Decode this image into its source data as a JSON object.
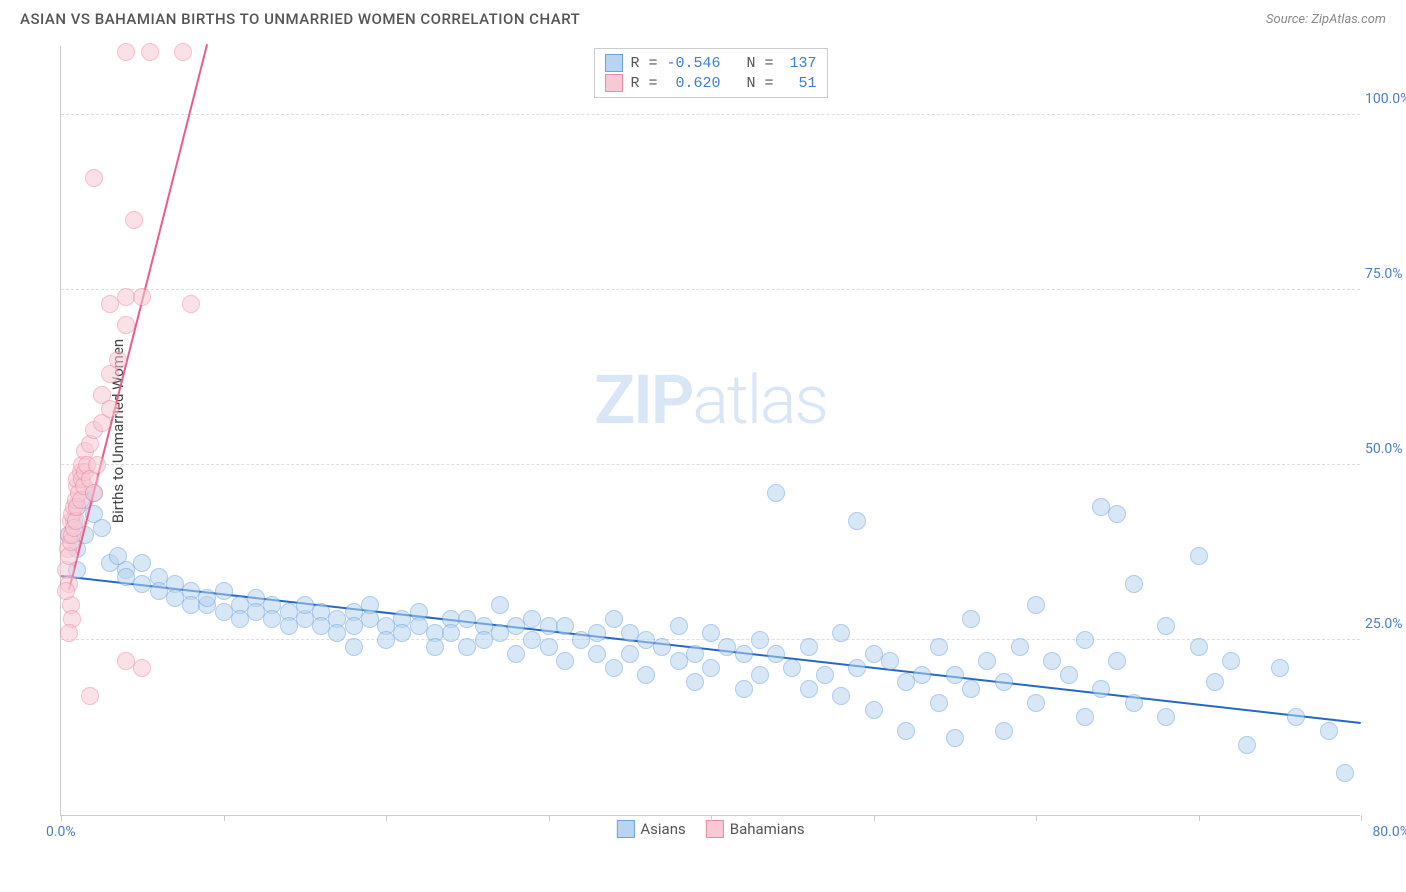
{
  "title": "ASIAN VS BAHAMIAN BIRTHS TO UNMARRIED WOMEN CORRELATION CHART",
  "source": "Source: ZipAtlas.com",
  "watermark_bold": "ZIP",
  "watermark_light": "atlas",
  "chart": {
    "type": "scatter",
    "yaxis_title": "Births to Unmarried Women",
    "background_color": "#ffffff",
    "grid_color": "#dddddd",
    "axis_color": "#cccccc",
    "tick_label_color": "#4a7ec9",
    "xlim": [
      0,
      80
    ],
    "ylim": [
      0,
      110
    ],
    "xtick_positions": [
      0,
      10,
      20,
      30,
      40,
      50,
      60,
      70,
      80
    ],
    "ytick_labels": [
      {
        "y": 25,
        "label": "25.0%"
      },
      {
        "y": 50,
        "label": "50.0%"
      },
      {
        "y": 75,
        "label": "75.0%"
      },
      {
        "y": 100,
        "label": "100.0%"
      }
    ],
    "xlabel_min": "0.0%",
    "xlabel_max": "80.0%",
    "marker_radius": 9,
    "marker_opacity": 0.55,
    "series": [
      {
        "name": "Asians",
        "color_fill": "#b8d4f0",
        "color_stroke": "#6ba3e0",
        "trend_line_color": "#2468c4",
        "trend": {
          "x1": 0,
          "y1": 34,
          "x2": 80,
          "y2": 13
        },
        "stats": {
          "R": "-0.546",
          "N": "137"
        },
        "points": [
          [
            1,
            44
          ],
          [
            1.5,
            45
          ],
          [
            0.8,
            42
          ],
          [
            0.5,
            40
          ],
          [
            2,
            46
          ],
          [
            2,
            43
          ],
          [
            2.5,
            41
          ],
          [
            1,
            38
          ],
          [
            1.5,
            40
          ],
          [
            1,
            35
          ],
          [
            3,
            36
          ],
          [
            4,
            35
          ],
          [
            3.5,
            37
          ],
          [
            5,
            36
          ],
          [
            4,
            34
          ],
          [
            5,
            33
          ],
          [
            6,
            34
          ],
          [
            6,
            32
          ],
          [
            7,
            33
          ],
          [
            7,
            31
          ],
          [
            8,
            32
          ],
          [
            8,
            30
          ],
          [
            9,
            30
          ],
          [
            9,
            31
          ],
          [
            10,
            32
          ],
          [
            10,
            29
          ],
          [
            11,
            30
          ],
          [
            11,
            28
          ],
          [
            12,
            31
          ],
          [
            12,
            29
          ],
          [
            13,
            30
          ],
          [
            13,
            28
          ],
          [
            14,
            29
          ],
          [
            14,
            27
          ],
          [
            15,
            28
          ],
          [
            15,
            30
          ],
          [
            16,
            29
          ],
          [
            16,
            27
          ],
          [
            17,
            28
          ],
          [
            17,
            26
          ],
          [
            18,
            29
          ],
          [
            18,
            27
          ],
          [
            18,
            24
          ],
          [
            19,
            28
          ],
          [
            19,
            30
          ],
          [
            20,
            27
          ],
          [
            20,
            25
          ],
          [
            21,
            28
          ],
          [
            21,
            26
          ],
          [
            22,
            29
          ],
          [
            22,
            27
          ],
          [
            23,
            26
          ],
          [
            23,
            24
          ],
          [
            24,
            28
          ],
          [
            24,
            26
          ],
          [
            25,
            28
          ],
          [
            25,
            24
          ],
          [
            26,
            27
          ],
          [
            26,
            25
          ],
          [
            27,
            26
          ],
          [
            27,
            30
          ],
          [
            28,
            27
          ],
          [
            28,
            23
          ],
          [
            29,
            25
          ],
          [
            29,
            28
          ],
          [
            30,
            27
          ],
          [
            30,
            24
          ],
          [
            31,
            27
          ],
          [
            31,
            22
          ],
          [
            32,
            25
          ],
          [
            33,
            26
          ],
          [
            33,
            23
          ],
          [
            34,
            28
          ],
          [
            34,
            21
          ],
          [
            35,
            26
          ],
          [
            35,
            23
          ],
          [
            36,
            25
          ],
          [
            36,
            20
          ],
          [
            37,
            24
          ],
          [
            38,
            27
          ],
          [
            38,
            22
          ],
          [
            39,
            23
          ],
          [
            39,
            19
          ],
          [
            40,
            26
          ],
          [
            40,
            21
          ],
          [
            41,
            24
          ],
          [
            42,
            23
          ],
          [
            42,
            18
          ],
          [
            43,
            25
          ],
          [
            43,
            20
          ],
          [
            44,
            46
          ],
          [
            44,
            23
          ],
          [
            45,
            21
          ],
          [
            46,
            24
          ],
          [
            46,
            18
          ],
          [
            47,
            20
          ],
          [
            48,
            26
          ],
          [
            48,
            17
          ],
          [
            49,
            42
          ],
          [
            49,
            21
          ],
          [
            50,
            23
          ],
          [
            50,
            15
          ],
          [
            51,
            22
          ],
          [
            52,
            19
          ],
          [
            52,
            12
          ],
          [
            53,
            20
          ],
          [
            54,
            24
          ],
          [
            54,
            16
          ],
          [
            55,
            20
          ],
          [
            55,
            11
          ],
          [
            56,
            28
          ],
          [
            56,
            18
          ],
          [
            57,
            22
          ],
          [
            58,
            19
          ],
          [
            58,
            12
          ],
          [
            59,
            24
          ],
          [
            60,
            30
          ],
          [
            60,
            16
          ],
          [
            61,
            22
          ],
          [
            62,
            20
          ],
          [
            63,
            25
          ],
          [
            63,
            14
          ],
          [
            64,
            44
          ],
          [
            64,
            18
          ],
          [
            65,
            43
          ],
          [
            65,
            22
          ],
          [
            66,
            33
          ],
          [
            66,
            16
          ],
          [
            68,
            27
          ],
          [
            68,
            14
          ],
          [
            70,
            37
          ],
          [
            70,
            24
          ],
          [
            71,
            19
          ],
          [
            72,
            22
          ],
          [
            73,
            10
          ],
          [
            75,
            21
          ],
          [
            76,
            14
          ],
          [
            78,
            12
          ],
          [
            79,
            6
          ]
        ]
      },
      {
        "name": "Bahamians",
        "color_fill": "#f7c9d4",
        "color_stroke": "#ed8aa5",
        "trend_line_color": "#e85d8a",
        "trend": {
          "x1": 0.5,
          "y1": 32,
          "x2": 9,
          "y2": 110
        },
        "stats": {
          "R": "0.620",
          "N": "51"
        },
        "points": [
          [
            0.3,
            35
          ],
          [
            0.4,
            38
          ],
          [
            0.5,
            37
          ],
          [
            0.5,
            40
          ],
          [
            0.6,
            39
          ],
          [
            0.6,
            42
          ],
          [
            0.7,
            40
          ],
          [
            0.7,
            43
          ],
          [
            0.8,
            41
          ],
          [
            0.8,
            44
          ],
          [
            0.9,
            42
          ],
          [
            0.9,
            45
          ],
          [
            1,
            44
          ],
          [
            1,
            47
          ],
          [
            1,
            48
          ],
          [
            1.1,
            46
          ],
          [
            1.2,
            49
          ],
          [
            1.2,
            45
          ],
          [
            1.3,
            48
          ],
          [
            1.3,
            50
          ],
          [
            1.4,
            47
          ],
          [
            1.5,
            49
          ],
          [
            1.5,
            52
          ],
          [
            1.6,
            50
          ],
          [
            1.8,
            53
          ],
          [
            1.8,
            48
          ],
          [
            2,
            46
          ],
          [
            2,
            55
          ],
          [
            2.2,
            50
          ],
          [
            0.5,
            33
          ],
          [
            0.6,
            30
          ],
          [
            0.7,
            28
          ],
          [
            0.3,
            32
          ],
          [
            2.5,
            56
          ],
          [
            2.5,
            60
          ],
          [
            3,
            58
          ],
          [
            3,
            63
          ],
          [
            3.5,
            65
          ],
          [
            4,
            70
          ],
          [
            4,
            74
          ],
          [
            3,
            73
          ],
          [
            5,
            74
          ],
          [
            4.5,
            85
          ],
          [
            2,
            91
          ],
          [
            8,
            73
          ],
          [
            4,
            109
          ],
          [
            5.5,
            109
          ],
          [
            7.5,
            109
          ],
          [
            4,
            22
          ],
          [
            5,
            21
          ],
          [
            1.8,
            17
          ],
          [
            0.5,
            26
          ]
        ]
      }
    ]
  },
  "bottom_legend": [
    {
      "label": "Asians",
      "fill": "#b8d4f0",
      "stroke": "#6ba3e0"
    },
    {
      "label": "Bahamians",
      "fill": "#f7c9d4",
      "stroke": "#ed8aa5"
    }
  ]
}
